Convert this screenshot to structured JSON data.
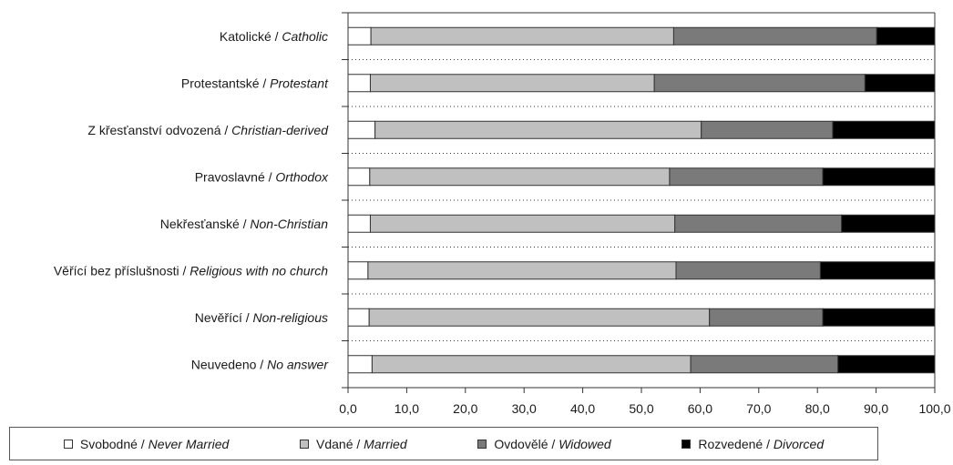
{
  "chart_data": {
    "type": "bar",
    "orientation": "horizontal",
    "stacked": true,
    "categories": [
      {
        "cz": "Katolické",
        "en": "Catholic"
      },
      {
        "cz": "Protestantské",
        "en": "Protestant"
      },
      {
        "cz": "Z křesťanství odvozená",
        "en": "Christian-derived"
      },
      {
        "cz": "Pravoslavné",
        "en": "Orthodox"
      },
      {
        "cz": "Nekřesťanské",
        "en": "Non-Christian"
      },
      {
        "cz": "Věřící bez příslušnosti",
        "en": "Religious with no church"
      },
      {
        "cz": "Nevěřící",
        "en": "Non-religious"
      },
      {
        "cz": "Neuvedeno",
        "en": "No answer"
      }
    ],
    "series": [
      {
        "name_cz": "Svobodné",
        "name_en": "Never Married",
        "color": "#ffffff",
        "values": [
          3.9,
          3.8,
          4.6,
          3.7,
          3.8,
          3.4,
          3.6,
          4.1
        ]
      },
      {
        "name_cz": "Vdané",
        "name_en": "Married",
        "color": "#c0c0c0",
        "values": [
          51.6,
          48.4,
          55.6,
          51.1,
          51.9,
          52.5,
          58.0,
          54.3
        ]
      },
      {
        "name_cz": "Ovdovělé",
        "name_en": "Widowed",
        "color": "#7a7a7a",
        "values": [
          34.6,
          35.9,
          22.4,
          26.1,
          28.4,
          24.6,
          19.3,
          25.1
        ]
      },
      {
        "name_cz": "Rozvedené",
        "name_en": "Divorced",
        "color": "#000000",
        "values": [
          9.9,
          11.9,
          17.4,
          19.1,
          15.9,
          19.5,
          19.1,
          16.5
        ]
      }
    ],
    "xlim": [
      0,
      100
    ],
    "xticks": [
      "0,0",
      "10,0",
      "20,0",
      "30,0",
      "40,0",
      "50,0",
      "60,0",
      "70,0",
      "80,0",
      "90,0",
      "100,0"
    ],
    "gridlines": "dotted horizontal separators between categories",
    "legend_position": "bottom"
  },
  "legend": {
    "items": [
      {
        "cz": "Svobodné / ",
        "en": "Never Married"
      },
      {
        "cz": "Vdané / ",
        "en": "Married"
      },
      {
        "cz": "Ovdovělé / ",
        "en": "Widowed"
      },
      {
        "cz": "Rozvedené / ",
        "en": "Divorced"
      }
    ]
  }
}
